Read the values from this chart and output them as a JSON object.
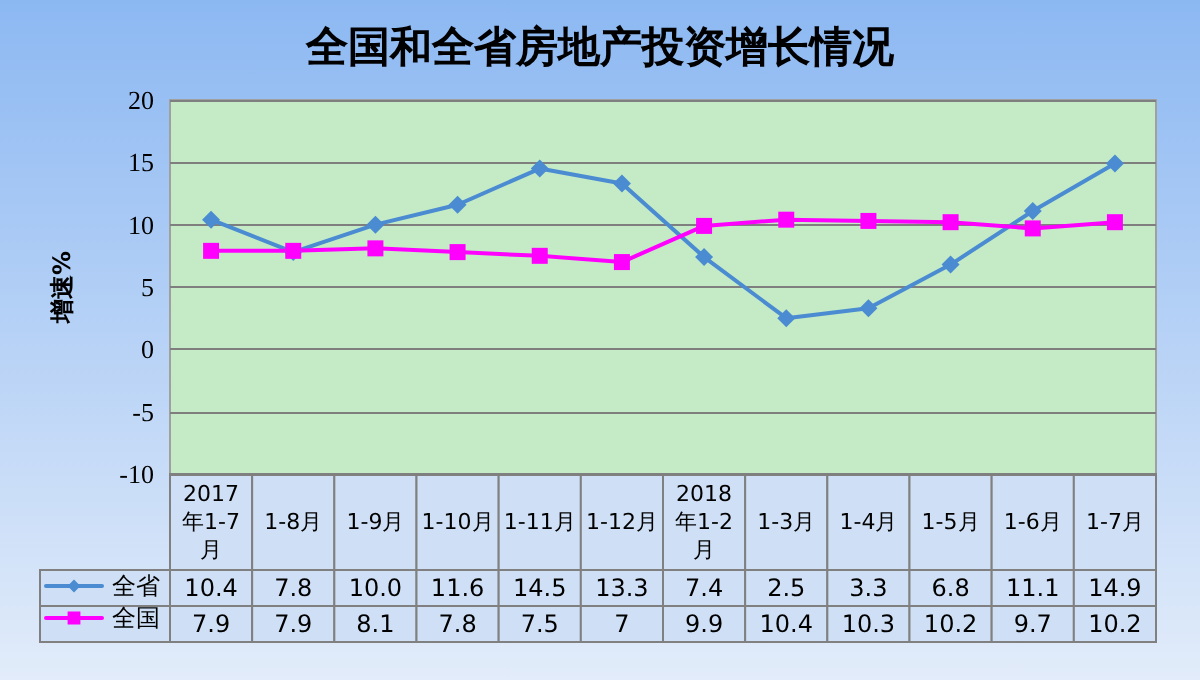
{
  "chart_data": {
    "type": "line",
    "title": "全国和全省房地产投资增长情况",
    "ylabel": "增速%",
    "categories": [
      "2017年1-7月",
      "1-8月",
      "1-9月",
      "1-10月",
      "1-11月",
      "1-12月",
      "2018年1-2月",
      "1-3月",
      "1-4月",
      "1-5月",
      "1-6月",
      "1-7月"
    ],
    "series": [
      {
        "name": "全省",
        "color": "#4a8bd2",
        "marker": "diamond",
        "values": [
          10.4,
          7.8,
          10.0,
          11.6,
          14.5,
          13.3,
          7.4,
          2.5,
          3.3,
          6.8,
          11.1,
          14.9
        ],
        "value_labels": [
          "10.4",
          "7.8",
          "10.0",
          "11.6",
          "14.5",
          "13.3",
          "7.4",
          "2.5",
          "3.3",
          "6.8",
          "11.1",
          "14.9"
        ]
      },
      {
        "name": "全国",
        "color": "#ff00ff",
        "marker": "square",
        "values": [
          7.9,
          7.9,
          8.1,
          7.8,
          7.5,
          7,
          9.9,
          10.4,
          10.3,
          10.2,
          9.7,
          10.2
        ],
        "value_labels": [
          "7.9",
          "7.9",
          "8.1",
          "7.8",
          "7.5",
          "7",
          "9.9",
          "10.4",
          "10.3",
          "10.2",
          "9.7",
          "10.2"
        ]
      }
    ],
    "ylim": [
      -10,
      20
    ],
    "yticks": [
      -10,
      -5,
      0,
      5,
      10,
      15,
      20
    ],
    "grid": "y",
    "legend": "bottom left",
    "line_style": "solid"
  }
}
